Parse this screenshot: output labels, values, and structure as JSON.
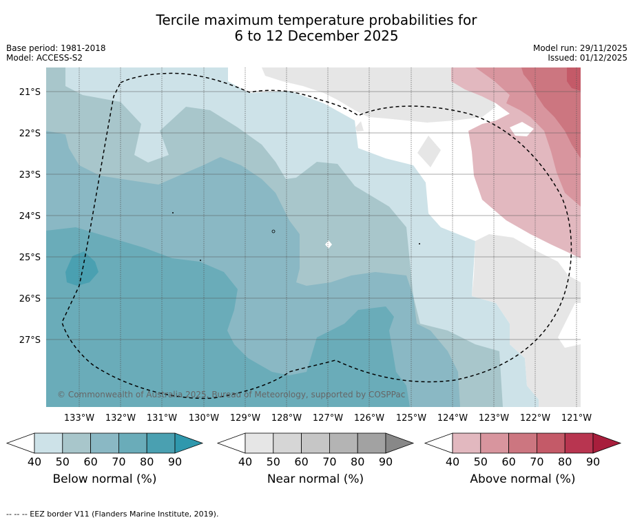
{
  "title": {
    "line1": "Tercile maximum temperature probabilities for",
    "line2": "6 to 12 December 2025"
  },
  "meta": {
    "base_period": "Base period: 1981-2018",
    "model": "Model: ACCESS-S2",
    "model_run": "Model run: 29/11/2025",
    "issued": "Issued: 01/12/2025"
  },
  "map": {
    "latitude_labels": [
      "21°S",
      "22°S",
      "23°S",
      "24°S",
      "25°S",
      "26°S",
      "27°S"
    ],
    "longitude_labels": [
      "133°W",
      "132°W",
      "131°W",
      "130°W",
      "129°W",
      "128°W",
      "127°W",
      "126°W",
      "125°W",
      "124°W",
      "123°W",
      "122°W",
      "121°W"
    ],
    "copyright": "© Commonwealth of Australia 2025, Bureau of Meteorology, supported by COSPPac"
  },
  "colorbars": [
    {
      "label": "Below normal (%)",
      "ticks": [
        "40",
        "50",
        "60",
        "70",
        "80",
        "90"
      ],
      "colors": [
        "#cde2e8",
        "#a8c6cb",
        "#8ab8c4",
        "#6aacb9",
        "#4aa0b1",
        "#2f98ad"
      ]
    },
    {
      "label": "Near normal (%)",
      "ticks": [
        "40",
        "50",
        "60",
        "70",
        "80",
        "90"
      ],
      "colors": [
        "#e6e6e6",
        "#d6d6d6",
        "#c6c6c6",
        "#b4b4b4",
        "#a2a2a2",
        "#888888"
      ]
    },
    {
      "label": "Above normal (%)",
      "ticks": [
        "40",
        "50",
        "60",
        "70",
        "80",
        "90"
      ],
      "colors": [
        "#e2b8bf",
        "#d8959e",
        "#cc7680",
        "#c45a68",
        "#b83550",
        "#a81e3c"
      ]
    }
  ],
  "footnote": "--  --  -- EEZ border V11 (Flanders Marine Institute, 2019)."
}
